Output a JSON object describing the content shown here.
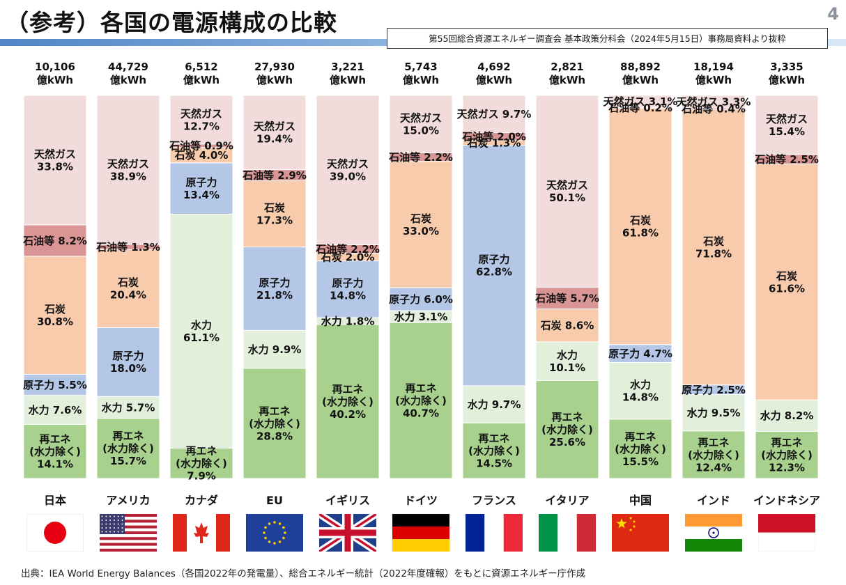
{
  "title": "（参考）各国の電源構成の比較",
  "page_number": "4",
  "source_note": "第55回総合資源エネルギー調査会 基本政策分科会（2024年5月15日）事務局資料より抜粋",
  "footer": "出典：IEA World Energy Balances（各国2022年の発電量）、総合エネルギー統計（2022年度確報）をもとに資源エネルギー庁作成",
  "colors": {
    "re": "#a9d18e",
    "hydro": "#e2efda",
    "nuclear": "#b4c7e7",
    "coal": "#f8cbad",
    "oil": "#d99694",
    "gas": "#f1dcdb"
  },
  "chart_data": {
    "type": "bar",
    "stacked": true,
    "unit": "億kWh",
    "categories": [
      "日本",
      "アメリカ",
      "カナダ",
      "EU",
      "イギリス",
      "ドイツ",
      "フランス",
      "イタリア",
      "中国",
      "インド",
      "インドネシア"
    ],
    "totals": [
      "10,106",
      "44,729",
      "6,512",
      "27,930",
      "3,221",
      "5,743",
      "4,692",
      "2,821",
      "88,892",
      "18,194",
      "3,335"
    ],
    "countries": [
      {
        "name": "日本",
        "total": "10,106",
        "flag": "japan",
        "segments": [
          {
            "key": "re",
            "value": 14.1,
            "label": [
              "再エネ",
              "(水力除く)",
              "14.1%"
            ]
          },
          {
            "key": "hydro",
            "value": 7.6,
            "label": [
              "水力 7.6%"
            ]
          },
          {
            "key": "nuclear",
            "value": 5.5,
            "label": [
              "原子力 5.5%"
            ]
          },
          {
            "key": "coal",
            "value": 30.8,
            "label": [
              "石炭",
              "30.8%"
            ]
          },
          {
            "key": "oil",
            "value": 8.2,
            "label": [
              "石油等 8.2%"
            ]
          },
          {
            "key": "gas",
            "value": 33.8,
            "label": [
              "天然ガス",
              "33.8%"
            ]
          }
        ]
      },
      {
        "name": "アメリカ",
        "total": "44,729",
        "flag": "usa",
        "segments": [
          {
            "key": "re",
            "value": 15.7,
            "label": [
              "再エネ",
              "(水力除く)",
              "15.7%"
            ]
          },
          {
            "key": "hydro",
            "value": 5.7,
            "label": [
              "水力 5.7%"
            ]
          },
          {
            "key": "nuclear",
            "value": 18.0,
            "label": [
              "原子力",
              "18.0%"
            ]
          },
          {
            "key": "coal",
            "value": 20.4,
            "label": [
              "石炭",
              "20.4%"
            ]
          },
          {
            "key": "oil",
            "value": 1.3,
            "label": [
              "石油等 1.3%"
            ]
          },
          {
            "key": "gas",
            "value": 38.9,
            "label": [
              "天然ガス",
              "38.9%"
            ]
          }
        ]
      },
      {
        "name": "カナダ",
        "total": "6,512",
        "flag": "canada",
        "segments": [
          {
            "key": "re",
            "value": 7.9,
            "label": [
              "再エネ",
              "(水力除く)",
              "7.9%"
            ]
          },
          {
            "key": "hydro",
            "value": 61.1,
            "label": [
              "水力",
              "61.1%"
            ]
          },
          {
            "key": "nuclear",
            "value": 13.4,
            "label": [
              "原子力",
              "13.4%"
            ]
          },
          {
            "key": "coal",
            "value": 4.0,
            "label": [
              "石炭 4.0%"
            ]
          },
          {
            "key": "oil",
            "value": 0.9,
            "label": [
              "石油等 0.9%"
            ]
          },
          {
            "key": "gas",
            "value": 12.7,
            "label": [
              "天然ガス",
              "12.7%"
            ]
          }
        ]
      },
      {
        "name": "EU",
        "total": "27,930",
        "flag": "eu",
        "segments": [
          {
            "key": "re",
            "value": 28.8,
            "label": [
              "再エネ",
              "(水力除く)",
              "28.8%"
            ]
          },
          {
            "key": "hydro",
            "value": 9.9,
            "label": [
              "水力 9.9%"
            ]
          },
          {
            "key": "nuclear",
            "value": 21.8,
            "label": [
              "原子力",
              "21.8%"
            ]
          },
          {
            "key": "coal",
            "value": 17.3,
            "label": [
              "石炭",
              "17.3%"
            ]
          },
          {
            "key": "oil",
            "value": 2.9,
            "label": [
              "石油等 2.9%"
            ]
          },
          {
            "key": "gas",
            "value": 19.4,
            "label": [
              "天然ガス",
              "19.4%"
            ]
          }
        ]
      },
      {
        "name": "イギリス",
        "total": "3,221",
        "flag": "uk",
        "segments": [
          {
            "key": "re",
            "value": 40.2,
            "label": [
              "再エネ",
              "(水力除く)",
              "40.2%"
            ]
          },
          {
            "key": "hydro",
            "value": 1.8,
            "label": [
              "水力 1.8%"
            ]
          },
          {
            "key": "nuclear",
            "value": 14.8,
            "label": [
              "原子力",
              "14.8%"
            ]
          },
          {
            "key": "coal",
            "value": 2.0,
            "label": [
              "石炭 2.0%"
            ]
          },
          {
            "key": "oil",
            "value": 2.2,
            "label": [
              "石油等 2.2%"
            ]
          },
          {
            "key": "gas",
            "value": 39.0,
            "label": [
              "天然ガス",
              "39.0%"
            ]
          }
        ]
      },
      {
        "name": "ドイツ",
        "total": "5,743",
        "flag": "germany",
        "segments": [
          {
            "key": "re",
            "value": 40.7,
            "label": [
              "再エネ",
              "(水力除く)",
              "40.7%"
            ]
          },
          {
            "key": "hydro",
            "value": 3.1,
            "label": [
              "水力 3.1%"
            ]
          },
          {
            "key": "nuclear",
            "value": 6.0,
            "label": [
              "原子力 6.0%"
            ]
          },
          {
            "key": "coal",
            "value": 33.0,
            "label": [
              "石炭",
              "33.0%"
            ]
          },
          {
            "key": "oil",
            "value": 2.2,
            "label": [
              "石油等 2.2%"
            ]
          },
          {
            "key": "gas",
            "value": 15.0,
            "label": [
              "天然ガス",
              "15.0%"
            ]
          }
        ]
      },
      {
        "name": "フランス",
        "total": "4,692",
        "flag": "france",
        "segments": [
          {
            "key": "re",
            "value": 14.5,
            "label": [
              "再エネ",
              "(水力除く)",
              "14.5%"
            ]
          },
          {
            "key": "hydro",
            "value": 9.7,
            "label": [
              "水力 9.7%"
            ]
          },
          {
            "key": "nuclear",
            "value": 62.8,
            "label": [
              "原子力",
              "62.8%"
            ]
          },
          {
            "key": "coal",
            "value": 1.3,
            "label": [
              "石炭 1.3%"
            ]
          },
          {
            "key": "oil",
            "value": 2.0,
            "label": [
              "石油等 2.0%"
            ]
          },
          {
            "key": "gas",
            "value": 9.7,
            "label": [
              "天然ガス 9.7%"
            ]
          }
        ]
      },
      {
        "name": "イタリア",
        "total": "2,821",
        "flag": "italy",
        "segments": [
          {
            "key": "re",
            "value": 25.6,
            "label": [
              "再エネ",
              "(水力除く)",
              "25.6%"
            ]
          },
          {
            "key": "hydro",
            "value": 10.1,
            "label": [
              "水力",
              "10.1%"
            ]
          },
          {
            "key": "coal",
            "value": 8.6,
            "label": [
              "石炭 8.6%"
            ]
          },
          {
            "key": "oil",
            "value": 5.7,
            "label": [
              "石油等 5.7%"
            ]
          },
          {
            "key": "gas",
            "value": 50.1,
            "label": [
              "天然ガス",
              "50.1%"
            ]
          }
        ]
      },
      {
        "name": "中国",
        "total": "88,892",
        "flag": "china",
        "segments": [
          {
            "key": "re",
            "value": 15.5,
            "label": [
              "再エネ",
              "(水力除く)",
              "15.5%"
            ]
          },
          {
            "key": "hydro",
            "value": 14.8,
            "label": [
              "水力",
              "14.8%"
            ]
          },
          {
            "key": "nuclear",
            "value": 4.7,
            "label": [
              "原子力 4.7%"
            ]
          },
          {
            "key": "coal",
            "value": 61.8,
            "label": [
              "石炭",
              "61.8%"
            ]
          },
          {
            "key": "oil",
            "value": 0.2,
            "label": [
              "石油等 0.2%"
            ]
          },
          {
            "key": "gas",
            "value": 3.1,
            "label": [
              "天然ガス 3.1%"
            ]
          }
        ]
      },
      {
        "name": "インド",
        "total": "18,194",
        "flag": "india",
        "segments": [
          {
            "key": "re",
            "value": 12.4,
            "label": [
              "再エネ",
              "(水力除く)",
              "12.4%"
            ]
          },
          {
            "key": "hydro",
            "value": 9.5,
            "label": [
              "水力 9.5%"
            ]
          },
          {
            "key": "nuclear",
            "value": 2.5,
            "label": [
              "原子力 2.5%"
            ]
          },
          {
            "key": "coal",
            "value": 71.8,
            "label": [
              "石炭",
              "71.8%"
            ]
          },
          {
            "key": "oil",
            "value": 0.4,
            "label": [
              "石油等 0.4%"
            ]
          },
          {
            "key": "gas",
            "value": 3.3,
            "label": [
              "天然ガス 3.3%"
            ]
          }
        ]
      },
      {
        "name": "インドネシア",
        "total": "3,335",
        "flag": "indonesia",
        "segments": [
          {
            "key": "re",
            "value": 12.3,
            "label": [
              "再エネ",
              "(水力除く)",
              "12.3%"
            ]
          },
          {
            "key": "hydro",
            "value": 8.2,
            "label": [
              "水力 8.2%"
            ]
          },
          {
            "key": "coal",
            "value": 61.6,
            "label": [
              "石炭",
              "61.6%"
            ]
          },
          {
            "key": "oil",
            "value": 2.5,
            "label": [
              "石油等 2.5%"
            ]
          },
          {
            "key": "gas",
            "value": 15.4,
            "label": [
              "天然ガス",
              "15.4%"
            ]
          }
        ]
      }
    ]
  }
}
